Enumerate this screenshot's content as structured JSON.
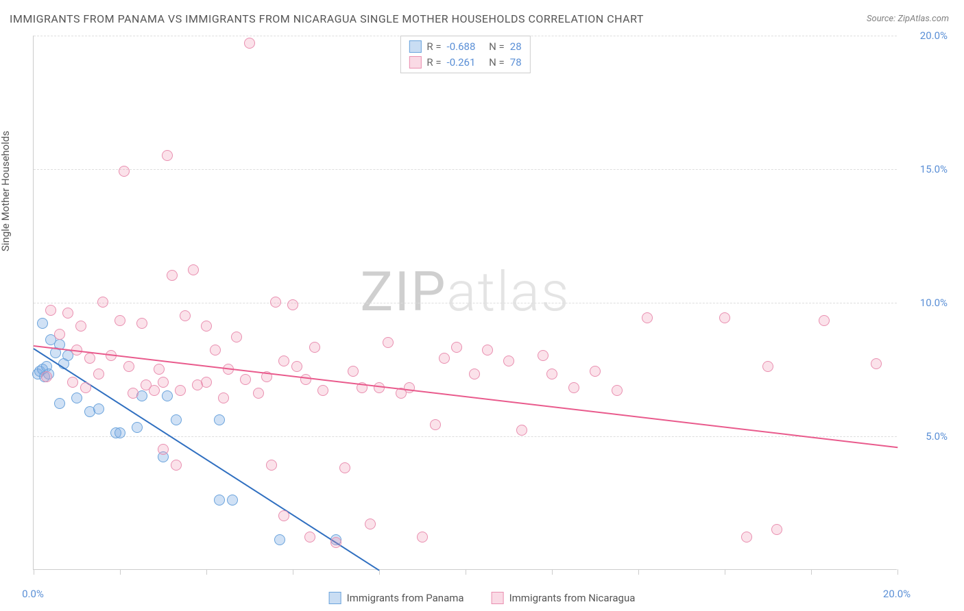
{
  "title": "IMMIGRANTS FROM PANAMA VS IMMIGRANTS FROM NICARAGUA SINGLE MOTHER HOUSEHOLDS CORRELATION CHART",
  "source_label": "Source:",
  "source_value": "ZipAtlas.com",
  "y_axis_label": "Single Mother Households",
  "watermark": {
    "part1": "ZIP",
    "part2": "atlas"
  },
  "chart": {
    "type": "scatter",
    "xlim": [
      0,
      20
    ],
    "ylim": [
      0,
      20
    ],
    "x_ticks": [
      0,
      2,
      4,
      6,
      8,
      10,
      12,
      14,
      16,
      18,
      20
    ],
    "x_tick_labels": {
      "0": "0.0%",
      "20": "20.0%"
    },
    "y_ticks": [
      5,
      10,
      15,
      20
    ],
    "y_tick_labels": {
      "5": "5.0%",
      "10": "10.0%",
      "15": "15.0%",
      "20": "20.0%"
    },
    "gridline_color": "#dddddd",
    "background_color": "#ffffff",
    "axis_color": "#cccccc",
    "tick_label_color": "#5a8fd6",
    "series": [
      {
        "name": "Immigrants from Panama",
        "color_fill": "rgba(120,170,225,0.35)",
        "color_stroke": "#6aa3dc",
        "trend_color": "#2f6fc0",
        "R": "-0.688",
        "N": "28",
        "trend": {
          "x1": 0.0,
          "y1": 8.3,
          "x2": 8.0,
          "y2": 0.0
        },
        "points": [
          [
            0.1,
            7.3
          ],
          [
            0.15,
            7.4
          ],
          [
            0.2,
            7.5
          ],
          [
            0.25,
            7.2
          ],
          [
            0.3,
            7.6
          ],
          [
            0.35,
            7.3
          ],
          [
            0.2,
            9.2
          ],
          [
            0.4,
            8.6
          ],
          [
            0.5,
            8.1
          ],
          [
            0.6,
            8.4
          ],
          [
            0.7,
            7.7
          ],
          [
            0.8,
            8.0
          ],
          [
            0.6,
            6.2
          ],
          [
            1.0,
            6.4
          ],
          [
            1.3,
            5.9
          ],
          [
            1.5,
            6.0
          ],
          [
            1.9,
            5.1
          ],
          [
            2.0,
            5.1
          ],
          [
            2.4,
            5.3
          ],
          [
            2.5,
            6.5
          ],
          [
            3.0,
            4.2
          ],
          [
            3.1,
            6.5
          ],
          [
            3.3,
            5.6
          ],
          [
            4.3,
            5.6
          ],
          [
            4.3,
            2.6
          ],
          [
            4.6,
            2.6
          ],
          [
            5.7,
            1.1
          ],
          [
            7.0,
            1.1
          ]
        ]
      },
      {
        "name": "Immigrants from Nicaragua",
        "color_fill": "rgba(240,150,180,0.28)",
        "color_stroke": "#e98fb0",
        "trend_color": "#e95a8c",
        "R": "-0.261",
        "N": "78",
        "trend": {
          "x1": 0.0,
          "y1": 8.4,
          "x2": 20.0,
          "y2": 4.6
        },
        "points": [
          [
            0.3,
            7.2
          ],
          [
            0.4,
            9.7
          ],
          [
            0.6,
            8.8
          ],
          [
            0.8,
            9.6
          ],
          [
            0.9,
            7.0
          ],
          [
            1.0,
            8.2
          ],
          [
            1.1,
            9.1
          ],
          [
            1.2,
            6.8
          ],
          [
            1.3,
            7.9
          ],
          [
            1.5,
            7.3
          ],
          [
            1.6,
            10.0
          ],
          [
            1.8,
            8.0
          ],
          [
            2.0,
            9.3
          ],
          [
            2.1,
            14.9
          ],
          [
            2.2,
            7.6
          ],
          [
            2.3,
            6.6
          ],
          [
            2.5,
            9.2
          ],
          [
            2.6,
            6.9
          ],
          [
            2.8,
            6.7
          ],
          [
            2.9,
            7.5
          ],
          [
            3.0,
            7.0
          ],
          [
            3.0,
            4.5
          ],
          [
            3.1,
            15.5
          ],
          [
            3.2,
            11.0
          ],
          [
            3.3,
            3.9
          ],
          [
            3.4,
            6.7
          ],
          [
            3.5,
            9.5
          ],
          [
            3.7,
            11.2
          ],
          [
            3.8,
            6.9
          ],
          [
            4.0,
            7.0
          ],
          [
            4.0,
            9.1
          ],
          [
            4.2,
            8.2
          ],
          [
            4.4,
            6.4
          ],
          [
            4.5,
            7.5
          ],
          [
            4.7,
            8.7
          ],
          [
            4.9,
            7.1
          ],
          [
            5.0,
            19.7
          ],
          [
            5.2,
            6.6
          ],
          [
            5.4,
            7.2
          ],
          [
            5.5,
            3.9
          ],
          [
            5.6,
            10.0
          ],
          [
            5.8,
            2.0
          ],
          [
            5.8,
            7.8
          ],
          [
            6.0,
            9.9
          ],
          [
            6.1,
            7.6
          ],
          [
            6.3,
            7.1
          ],
          [
            6.4,
            1.2
          ],
          [
            6.5,
            8.3
          ],
          [
            6.7,
            6.7
          ],
          [
            7.0,
            1.0
          ],
          [
            7.2,
            3.8
          ],
          [
            7.4,
            7.4
          ],
          [
            7.6,
            6.8
          ],
          [
            7.8,
            1.7
          ],
          [
            8.0,
            6.8
          ],
          [
            8.2,
            8.5
          ],
          [
            8.5,
            6.6
          ],
          [
            8.7,
            6.8
          ],
          [
            9.0,
            1.2
          ],
          [
            9.3,
            5.4
          ],
          [
            9.5,
            7.9
          ],
          [
            9.8,
            8.3
          ],
          [
            10.2,
            7.3
          ],
          [
            10.5,
            8.2
          ],
          [
            11.0,
            7.8
          ],
          [
            11.3,
            5.2
          ],
          [
            11.8,
            8.0
          ],
          [
            12.0,
            7.3
          ],
          [
            12.5,
            6.8
          ],
          [
            13.0,
            7.4
          ],
          [
            13.5,
            6.7
          ],
          [
            14.2,
            9.4
          ],
          [
            16.0,
            9.4
          ],
          [
            16.5,
            1.2
          ],
          [
            17.0,
            7.6
          ],
          [
            17.2,
            1.5
          ],
          [
            18.3,
            9.3
          ],
          [
            19.5,
            7.7
          ]
        ]
      }
    ]
  },
  "legend_top": {
    "rows": [
      {
        "swatch": "blue",
        "r_label": "R =",
        "r_value": "-0.688",
        "n_label": "N =",
        "n_value": "28"
      },
      {
        "swatch": "pink",
        "r_label": "R =",
        "r_value": "-0.261",
        "n_label": "N =",
        "n_value": "78"
      }
    ]
  },
  "legend_bottom": {
    "items": [
      {
        "swatch": "blue",
        "label": "Immigrants from Panama"
      },
      {
        "swatch": "pink",
        "label": "Immigrants from Nicaragua"
      }
    ]
  }
}
